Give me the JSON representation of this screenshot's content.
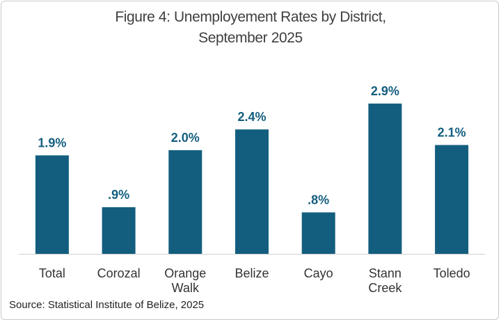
{
  "colors": {
    "bar": "#135e7f",
    "value_label": "#135e7f",
    "axis": "#d0d0d0",
    "category_label": "#333333"
  },
  "chart_data": {
    "type": "bar",
    "title_line1": "Figure 4: Unemployement Rates by District,",
    "title_line2": "September 2025",
    "categories": [
      [
        "Total"
      ],
      [
        "Corozal"
      ],
      [
        "Orange",
        "Walk"
      ],
      [
        "Belize"
      ],
      [
        "Cayo"
      ],
      [
        "Stann",
        "Creek"
      ],
      [
        "Toledo"
      ]
    ],
    "values": [
      1.9,
      0.9,
      2.0,
      2.4,
      0.8,
      2.9,
      2.1
    ],
    "value_labels": [
      "1.9%",
      ".9%",
      "2.0%",
      "2.4%",
      ".8%",
      "2.9%",
      "2.1%"
    ],
    "xlabel": "",
    "ylabel": "",
    "ylim": [
      0,
      3.18
    ],
    "grid": false,
    "legend": "none"
  },
  "source": "Source: Statistical Institute of Belize, 2025"
}
